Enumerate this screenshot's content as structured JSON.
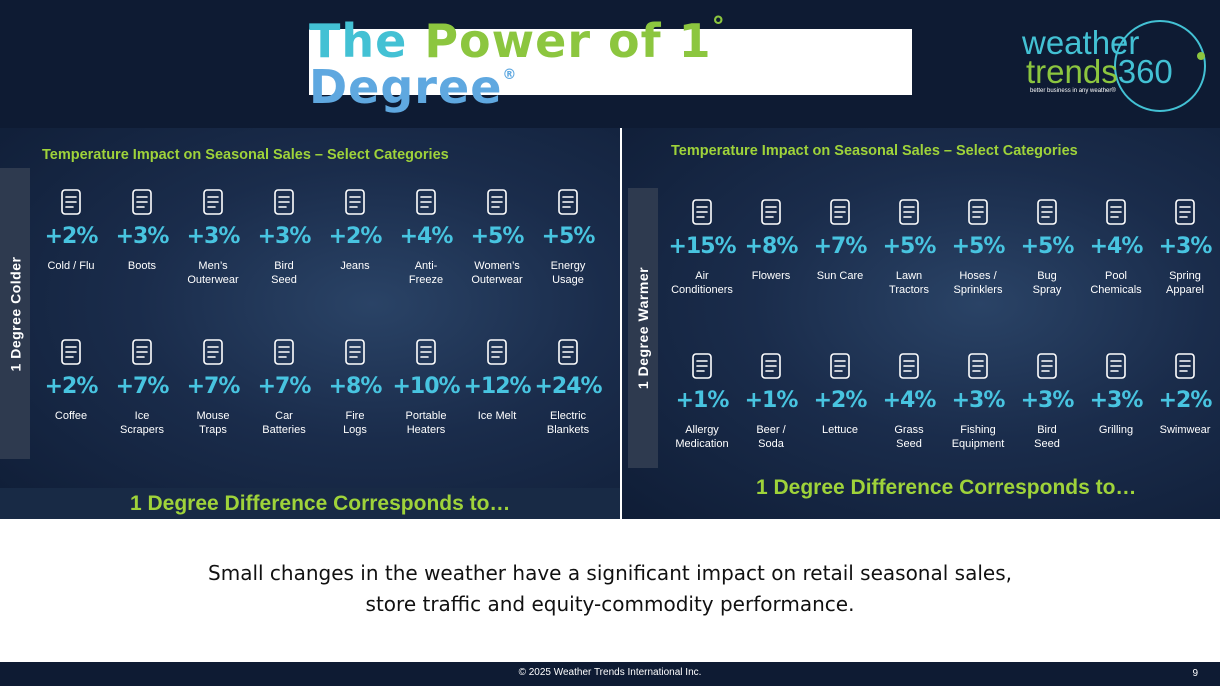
{
  "title": {
    "part1": "The",
    "part2": "Power of 1",
    "degree": "°",
    "part3": "Degree",
    "reg": "®"
  },
  "logo": {
    "line1": "weather",
    "line2a": "trends",
    "line2b": "360",
    "tagline": "better business in any weather®"
  },
  "left_panel": {
    "title": "Temperature Impact on Seasonal Sales – Select Categories",
    "side_label": "1 Degree Colder",
    "bottom": "1 Degree Difference Corresponds to…",
    "row1": [
      {
        "icon": "ice-tray-icon",
        "pct": "+2%",
        "l1": "Cold / Flu",
        "l2": ""
      },
      {
        "icon": "boot-icon",
        "pct": "+3%",
        "l1": "Boots",
        "l2": ""
      },
      {
        "icon": "coat-icon",
        "pct": "+3%",
        "l1": "Men’s",
        "l2": "Outerwear"
      },
      {
        "icon": "seed-bag-icon",
        "pct": "+3%",
        "l1": "Bird",
        "l2": "Seed"
      },
      {
        "icon": "jeans-icon",
        "pct": "+2%",
        "l1": "Jeans",
        "l2": ""
      },
      {
        "icon": "antifreeze-icon",
        "pct": "+4%",
        "l1": "Anti-",
        "l2": "Freeze"
      },
      {
        "icon": "dress-icon",
        "pct": "+5%",
        "l1": "Women’s",
        "l2": "Outerwear"
      },
      {
        "icon": "energy-meter-icon",
        "pct": "+5%",
        "l1": "Energy",
        "l2": "Usage"
      }
    ],
    "row2": [
      {
        "icon": "coffee-icon",
        "pct": "+2%",
        "l1": "Coffee",
        "l2": ""
      },
      {
        "icon": "ice-scraper-icon",
        "pct": "+7%",
        "l1": "Ice",
        "l2": "Scrapers"
      },
      {
        "icon": "mouse-trap-icon",
        "pct": "+7%",
        "l1": "Mouse",
        "l2": "Traps"
      },
      {
        "icon": "car-battery-icon",
        "pct": "+7%",
        "l1": "Car",
        "l2": "Batteries"
      },
      {
        "icon": "fire-logs-icon",
        "pct": "+8%",
        "l1": "Fire",
        "l2": "Logs"
      },
      {
        "icon": "heater-icon",
        "pct": "+10%",
        "l1": "Portable",
        "l2": "Heaters"
      },
      {
        "icon": "ice-melt-icon",
        "pct": "+12%",
        "l1": "Ice Melt",
        "l2": ""
      },
      {
        "icon": "blanket-icon",
        "pct": "+24%",
        "l1": "Electric",
        "l2": "Blankets"
      }
    ]
  },
  "right_panel": {
    "title": "Temperature Impact on Seasonal Sales – Select Categories",
    "side_label": "1 Degree Warmer",
    "bottom": "1 Degree Difference Corresponds to…",
    "row1": [
      {
        "icon": "air-conditioner-icon",
        "pct": "+15%",
        "l1": "Air",
        "l2": "Conditioners"
      },
      {
        "icon": "flowers-icon",
        "pct": "+8%",
        "l1": "Flowers",
        "l2": ""
      },
      {
        "icon": "sun-care-icon",
        "pct": "+7%",
        "l1": "Sun Care",
        "l2": ""
      },
      {
        "icon": "lawn-tractor-icon",
        "pct": "+5%",
        "l1": "Lawn",
        "l2": "Tractors"
      },
      {
        "icon": "sprinkler-icon",
        "pct": "+5%",
        "l1": "Hoses /",
        "l2": "Sprinklers"
      },
      {
        "icon": "spray-bottle-icon",
        "pct": "+5%",
        "l1": "Bug",
        "l2": "Spray"
      },
      {
        "icon": "chemical-bottles-icon",
        "pct": "+4%",
        "l1": "Pool",
        "l2": "Chemicals"
      },
      {
        "icon": "raincoat-icon",
        "pct": "+3%",
        "l1": "Spring",
        "l2": "Apparel"
      }
    ],
    "row2": [
      {
        "icon": "pill-bottle-icon",
        "pct": "+1%",
        "l1": "Allergy",
        "l2": "Medication"
      },
      {
        "icon": "bottle-icon",
        "pct": "+1%",
        "l1": "Beer /",
        "l2": "Soda"
      },
      {
        "icon": "lettuce-icon",
        "pct": "+2%",
        "l1": "Lettuce",
        "l2": ""
      },
      {
        "icon": "grass-seed-icon",
        "pct": "+4%",
        "l1": "Grass",
        "l2": "Seed"
      },
      {
        "icon": "fishing-rod-icon",
        "pct": "+3%",
        "l1": "Fishing",
        "l2": "Equipment"
      },
      {
        "icon": "seed-bag-icon",
        "pct": "+3%",
        "l1": "Bird",
        "l2": "Seed"
      },
      {
        "icon": "grill-icon",
        "pct": "+3%",
        "l1": "Grilling",
        "l2": ""
      },
      {
        "icon": "swimsuit-icon",
        "pct": "+2%",
        "l1": "Swimwear",
        "l2": ""
      }
    ]
  },
  "caption": {
    "line1": "Small changes in the weather have a significant impact on retail seasonal sales,",
    "line2": "store traffic and equity-commodity performance."
  },
  "footer": {
    "copyright": "© 2025 Weather Trends International Inc.",
    "page": "9"
  }
}
